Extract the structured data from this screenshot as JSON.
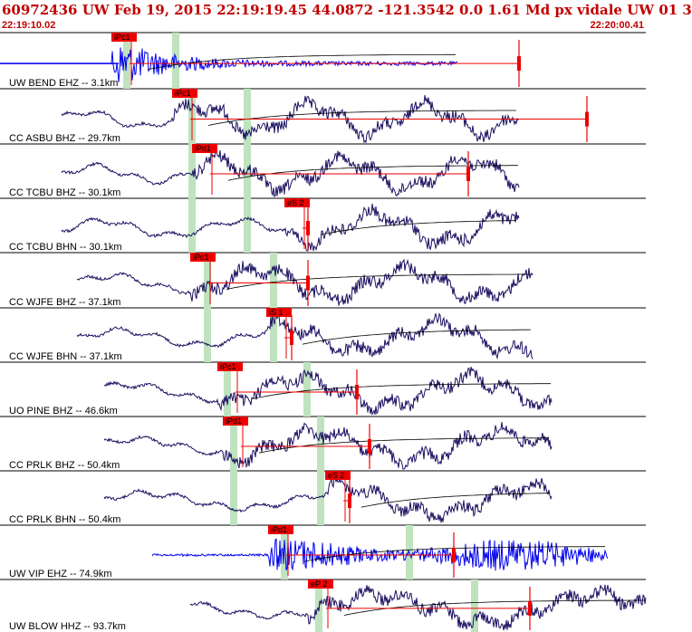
{
  "header": {
    "title": "60972436 UW Feb 19, 2015 22:19:19.45   44.0872 -121.3542  0.0 1.61 Md px vidale UW 01   3",
    "start_time": "22:19:10.02",
    "end_time": "22:20:00.41"
  },
  "colors": {
    "accent": "#c00000",
    "trace_dark": "#1a1060",
    "trace_blue": "#0000ee",
    "pick_box": "#ee0000",
    "window_band": "#bfe3bf"
  },
  "traces": [
    {
      "label": "UW BEND EHZ -- 3.1km",
      "pick": "iPc1",
      "style": "blue"
    },
    {
      "label": "CC ASBU BHZ -- 29.7km",
      "pick": "iPc1",
      "style": "dark"
    },
    {
      "label": "CC TCBU BHZ -- 30.1km",
      "pick": "iPd1",
      "style": "dark"
    },
    {
      "label": "CC TCBU BHN -- 30.1km",
      "pick": "eS 2",
      "style": "dark"
    },
    {
      "label": "CC WJFE BHZ -- 37.1km",
      "pick": "iPc1",
      "style": "dark"
    },
    {
      "label": "CC WJFE BHN -- 37.1km",
      "pick": "iS 1",
      "style": "dark"
    },
    {
      "label": "UO PINE BHZ -- 46.6km",
      "pick": "iPc1",
      "style": "dark"
    },
    {
      "label": "CC PRLK BHZ -- 50.4km",
      "pick": "iPd1",
      "style": "dark"
    },
    {
      "label": "CC PRLK BHN -- 50.4km",
      "pick": "eS 2",
      "style": "dark"
    },
    {
      "label": "UW VIP EHZ -- 74.9km",
      "pick": "iPd1",
      "style": "blue"
    },
    {
      "label": "UW BLOW HHZ -- 93.7km",
      "pick": "eP 2",
      "style": "dark"
    }
  ]
}
